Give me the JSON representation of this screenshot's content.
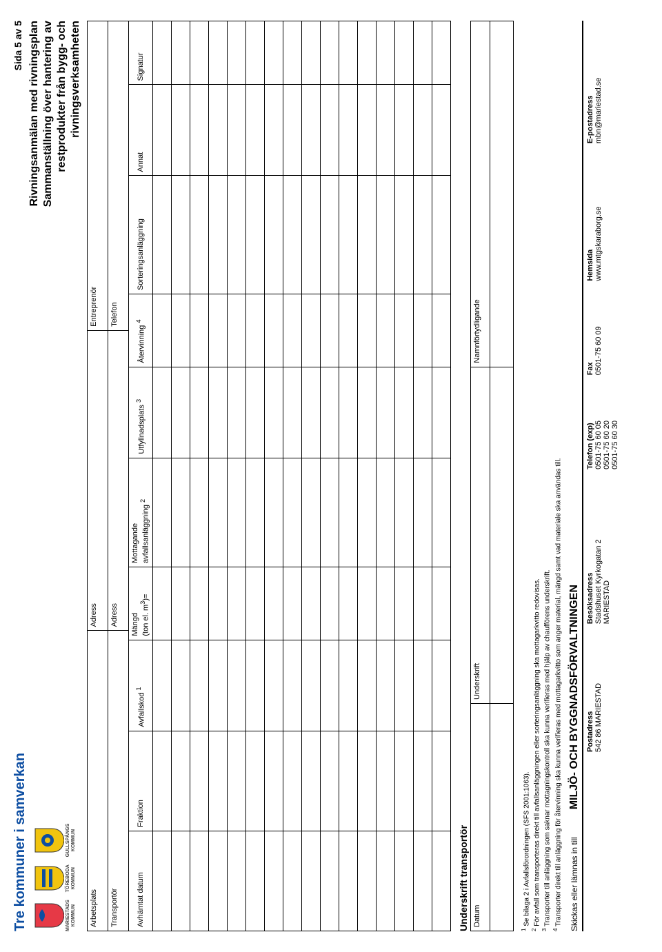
{
  "brand": {
    "title": "Tre kommuner i samverkan",
    "logos": [
      {
        "name": "MARIESTADS",
        "sub": "KOMMUN",
        "fill": "#e63946",
        "accent": "#0d4ea2"
      },
      {
        "name": "TÖREBODA",
        "sub": "KOMMUN",
        "fill": "#f1c40f",
        "accent": "#0d4ea2"
      },
      {
        "name": "GULLSPÅNGS",
        "sub": "KOMMUN",
        "fill": "#f1c40f",
        "accent": "#0d4ea2"
      }
    ]
  },
  "meta": {
    "page": "Sida 5 av 5",
    "title_line1": "Rivningsanmälan med rivningsplan",
    "title_line2": "Sammanställning över hantering av",
    "title_line3": "restprodukter från bygg- och",
    "title_line4": "rivningsverksamheten"
  },
  "header_fields": {
    "arbetsplats": "Arbetsplats",
    "adress1": "Adress",
    "entreprenor": "Entreprenör",
    "transportor": "Transportör",
    "adress2": "Adress",
    "telefon": "Telefon"
  },
  "columns": {
    "c1": "Avhämtat datum",
    "c2": "Fraktion",
    "c3_pre": "Avfallskod ",
    "c3_sup": "1",
    "c4_l1": "Mängd",
    "c4_l2_pre": "(ton el. m",
    "c4_l2_sup": "3",
    "c4_l2_post": ")=",
    "c5_l1": "Mottagande",
    "c5_l2_pre": "avfallsanläggning ",
    "c5_l2_sup": "2",
    "c6_pre": "Utfyllnadsplats ",
    "c6_sup": "3",
    "c7_pre": "Återvinning ",
    "c7_sup": "4",
    "c8": "Sorteringsanläggning",
    "c9": "Annat",
    "c10": "Signatur"
  },
  "row_count": 16,
  "signature": {
    "heading": "Underskrift transportör",
    "datum": "Datum",
    "underskrift": "Underskrift",
    "namn": "Namnförtydligande"
  },
  "footnotes": {
    "f1": " Se bilaga 2 i Avfallsförordningen (SFS 2001:1063).",
    "f2": " För avfall som transporteras direkt till avfallsanläggningen eller sorteringsanläggning ska mottagarkvitto redovisas.",
    "f3": " Transporter till anläggning som saknar mottagningskontroll ska kunna verifieras med hjälp av chaufförens underskrift.",
    "f4": " Transporter direkt till anläggning för återvinning ska kunna verifieras med mottagarkvitto som anger material, mängd samt vad materiale ska användas till."
  },
  "skickas": {
    "label": "Skickas eller lämnas in till",
    "dept": "MILJÖ- OCH BYGGNADSFÖRVALTNINGEN"
  },
  "contact": {
    "headers": [
      "Postadress",
      "Besöksadress",
      "Telefon (exp)",
      "Fax",
      "Hemsida",
      "E-postadress"
    ],
    "rows": [
      [
        "542 86 MARIESTAD",
        "Stadshuset Kyrkogatan 2",
        "0501-75 60 05",
        "0501-75 60 09",
        "www.mtgskaraborg.se",
        "mbn@mariestad.se"
      ],
      [
        "",
        "MARIESTAD",
        "0501-75 60 20",
        "",
        "",
        ""
      ],
      [
        "",
        "",
        "0501-75 60 30",
        "",
        "",
        ""
      ]
    ]
  }
}
